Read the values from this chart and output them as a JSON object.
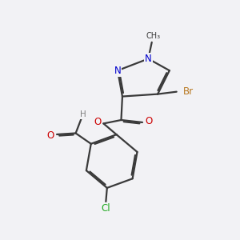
{
  "bg_color": "#f2f2f5",
  "bond_color": "#3a3a3a",
  "bond_width": 1.6,
  "dbo": 0.06,
  "atom_colors": {
    "N": "#0000cc",
    "O": "#cc0000",
    "Br": "#b87820",
    "Cl": "#22aa22",
    "C": "#3a3a3a",
    "H": "#808080"
  },
  "fs": 8.5,
  "fs_small": 7.0
}
